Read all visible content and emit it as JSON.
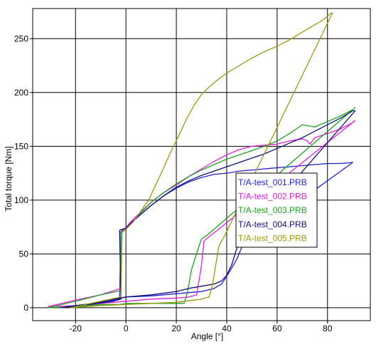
{
  "chart_data": {
    "type": "line",
    "xlabel": "Angle [°]",
    "ylabel": "Total torque [Nm]",
    "xlim": [
      -37,
      97
    ],
    "ylim": [
      -12,
      278
    ],
    "x_ticks": [
      -20,
      0,
      20,
      40,
      60,
      80
    ],
    "y_ticks": [
      0,
      50,
      100,
      150,
      200,
      250
    ],
    "grid": true,
    "legend_position": "center-right",
    "series": [
      {
        "name": "T/A-test_001.PRB",
        "color": "#1f1fd0",
        "points": [
          [
            -16,
            2
          ],
          [
            -8,
            5
          ],
          [
            -2.5,
            8
          ],
          [
            -2,
            70
          ],
          [
            -1.5,
            72
          ],
          [
            0,
            74
          ],
          [
            2,
            79
          ],
          [
            5,
            85
          ],
          [
            10,
            95
          ],
          [
            15,
            104
          ],
          [
            20,
            111
          ],
          [
            25,
            117
          ],
          [
            30,
            121
          ],
          [
            35,
            124
          ],
          [
            40,
            125
          ],
          [
            45,
            127
          ],
          [
            50,
            128
          ],
          [
            55,
            129
          ],
          [
            60,
            130
          ],
          [
            65,
            131
          ],
          [
            70,
            132
          ],
          [
            75,
            133
          ],
          [
            80,
            134
          ],
          [
            85,
            134
          ],
          [
            90,
            135
          ],
          [
            47,
            62
          ],
          [
            44,
            45
          ],
          [
            41,
            33
          ],
          [
            38,
            22
          ],
          [
            35,
            18
          ],
          [
            30,
            15
          ],
          [
            25,
            14
          ],
          [
            20,
            13
          ],
          [
            10,
            11
          ],
          [
            0,
            10
          ],
          [
            -10,
            6
          ],
          [
            -16,
            2
          ]
        ]
      },
      {
        "name": "T/A-test_002.PRB",
        "color": "#e020e0",
        "points": [
          [
            -31,
            1
          ],
          [
            -20,
            7
          ],
          [
            -10,
            12
          ],
          [
            -2,
            18
          ],
          [
            -2.5,
            70
          ],
          [
            -1,
            72
          ],
          [
            2,
            80
          ],
          [
            5,
            87
          ],
          [
            10,
            98
          ],
          [
            15,
            107
          ],
          [
            20,
            114
          ],
          [
            25,
            122
          ],
          [
            30,
            129
          ],
          [
            35,
            136
          ],
          [
            40,
            142
          ],
          [
            45,
            147
          ],
          [
            50,
            150
          ],
          [
            55,
            151
          ],
          [
            60,
            152
          ],
          [
            65,
            155
          ],
          [
            70,
            157
          ],
          [
            72,
            155
          ],
          [
            73,
            152
          ],
          [
            75,
            158
          ],
          [
            80,
            162
          ],
          [
            85,
            166
          ],
          [
            90,
            172
          ],
          [
            91,
            174
          ],
          [
            33,
            66
          ],
          [
            31,
            62
          ],
          [
            30,
            40
          ],
          [
            29,
            25
          ],
          [
            28,
            12
          ],
          [
            25,
            10
          ],
          [
            20,
            9
          ],
          [
            10,
            8
          ],
          [
            0,
            6
          ],
          [
            -10,
            4
          ],
          [
            -20,
            2
          ],
          [
            -31,
            1
          ]
        ]
      },
      {
        "name": "T/A-test_003.PRB",
        "color": "#20a020",
        "points": [
          [
            -31,
            0
          ],
          [
            -20,
            6
          ],
          [
            -10,
            12
          ],
          [
            -2,
            16
          ],
          [
            -2,
            70
          ],
          [
            0,
            73
          ],
          [
            5,
            86
          ],
          [
            10,
            98
          ],
          [
            15,
            107
          ],
          [
            20,
            115
          ],
          [
            25,
            122
          ],
          [
            30,
            128
          ],
          [
            35,
            133
          ],
          [
            40,
            138
          ],
          [
            45,
            142
          ],
          [
            50,
            146
          ],
          [
            55,
            150
          ],
          [
            60,
            155
          ],
          [
            65,
            162
          ],
          [
            70,
            170
          ],
          [
            75,
            168
          ],
          [
            80,
            173
          ],
          [
            85,
            178
          ],
          [
            90,
            184
          ],
          [
            91,
            186
          ],
          [
            32,
            67
          ],
          [
            30,
            64
          ],
          [
            28,
            50
          ],
          [
            26,
            35
          ],
          [
            25,
            22
          ],
          [
            24,
            10
          ],
          [
            23,
            4
          ],
          [
            10,
            4
          ],
          [
            0,
            4
          ],
          [
            -2,
            3
          ],
          [
            -10,
            3
          ],
          [
            -20,
            1
          ],
          [
            -31,
            0
          ]
        ]
      },
      {
        "name": "T/A-test_004.PRB",
        "color": "#10107a",
        "points": [
          [
            -26,
            0
          ],
          [
            -15,
            3
          ],
          [
            -5,
            6
          ],
          [
            -2,
            8
          ],
          [
            -2.5,
            72
          ],
          [
            0,
            74
          ],
          [
            5,
            85
          ],
          [
            10,
            95
          ],
          [
            15,
            104
          ],
          [
            20,
            112
          ],
          [
            25,
            118
          ],
          [
            30,
            123
          ],
          [
            35,
            127
          ],
          [
            40,
            131
          ],
          [
            45,
            135
          ],
          [
            50,
            139
          ],
          [
            55,
            143
          ],
          [
            60,
            148
          ],
          [
            65,
            153
          ],
          [
            70,
            158
          ],
          [
            75,
            164
          ],
          [
            80,
            170
          ],
          [
            85,
            176
          ],
          [
            90,
            183
          ],
          [
            91,
            183
          ],
          [
            46,
            62
          ],
          [
            44,
            55
          ],
          [
            42,
            40
          ],
          [
            40,
            30
          ],
          [
            38,
            25
          ],
          [
            35,
            22
          ],
          [
            30,
            20
          ],
          [
            25,
            18
          ],
          [
            20,
            15
          ],
          [
            10,
            12
          ],
          [
            0,
            10
          ],
          [
            -10,
            5
          ],
          [
            -20,
            2
          ],
          [
            -26,
            0
          ]
        ]
      },
      {
        "name": "T/A-test_005.PRB",
        "color": "#9a9a10",
        "points": [
          [
            -22,
            0
          ],
          [
            -10,
            6
          ],
          [
            -2,
            10
          ],
          [
            -1.5,
            70
          ],
          [
            0,
            73
          ],
          [
            3,
            80
          ],
          [
            6,
            90
          ],
          [
            9,
            100
          ],
          [
            12,
            115
          ],
          [
            15,
            130
          ],
          [
            18,
            146
          ],
          [
            21,
            160
          ],
          [
            24,
            175
          ],
          [
            27,
            188
          ],
          [
            30,
            198
          ],
          [
            33,
            205
          ],
          [
            36,
            211
          ],
          [
            40,
            218
          ],
          [
            45,
            225
          ],
          [
            50,
            232
          ],
          [
            55,
            238
          ],
          [
            60,
            243
          ],
          [
            65,
            249
          ],
          [
            70,
            256
          ],
          [
            75,
            263
          ],
          [
            78,
            267
          ],
          [
            81,
            273
          ],
          [
            82,
            274
          ],
          [
            39,
            66
          ],
          [
            37,
            58
          ],
          [
            36,
            45
          ],
          [
            35,
            30
          ],
          [
            34,
            18
          ],
          [
            33,
            10
          ],
          [
            30,
            8
          ],
          [
            20,
            5
          ],
          [
            10,
            4
          ],
          [
            0,
            3
          ],
          [
            -10,
            2
          ],
          [
            -22,
            0
          ]
        ]
      }
    ]
  }
}
